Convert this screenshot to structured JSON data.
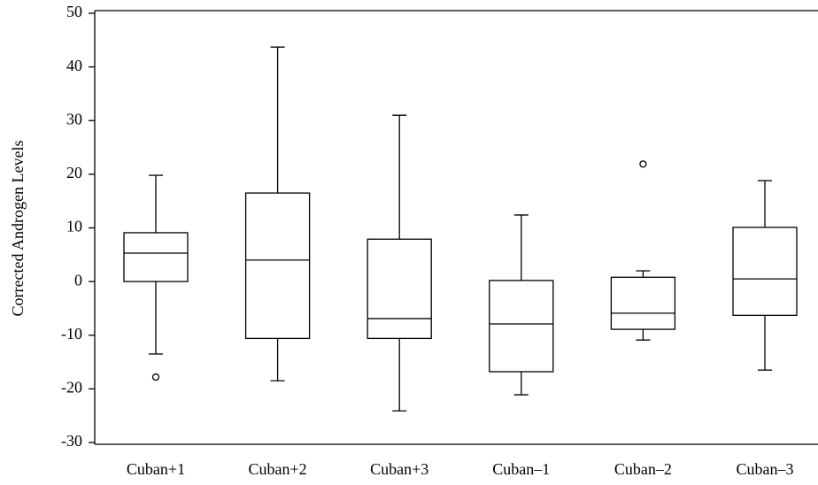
{
  "chart_data": {
    "type": "box",
    "y_label": "Corrected Androgen Levels",
    "categories": [
      "Cuban+1",
      "Cuban+2",
      "Cuban+3",
      "Cuban–1",
      "Cuban–2",
      "Cuban–3"
    ],
    "boxes": [
      {
        "min": -13.5,
        "q1": 0,
        "median": 5.3,
        "q3": 9.1,
        "max": 19.8,
        "outliers": [
          -17.8
        ]
      },
      {
        "min": -18.5,
        "q1": -10.6,
        "median": 4.0,
        "q3": 16.5,
        "max": 43.7,
        "outliers": []
      },
      {
        "min": -24.1,
        "q1": -10.6,
        "median": -6.9,
        "q3": 7.9,
        "max": 31.0,
        "outliers": []
      },
      {
        "min": -21.1,
        "q1": -16.8,
        "median": -7.9,
        "q3": 0.2,
        "max": 12.4,
        "outliers": []
      },
      {
        "min": -10.9,
        "q1": -8.9,
        "median": -5.9,
        "q3": 0.8,
        "max": 2.0,
        "outliers": [
          21.9
        ]
      },
      {
        "min": -16.5,
        "q1": -6.3,
        "median": 0.5,
        "q3": 10.1,
        "max": 18.8,
        "outliers": []
      }
    ],
    "color": "#000000",
    "ylim": [
      -30,
      50
    ],
    "yticks": [
      -30,
      -20,
      -10,
      0,
      10,
      20,
      30,
      40,
      50
    ],
    "grid": false
  }
}
